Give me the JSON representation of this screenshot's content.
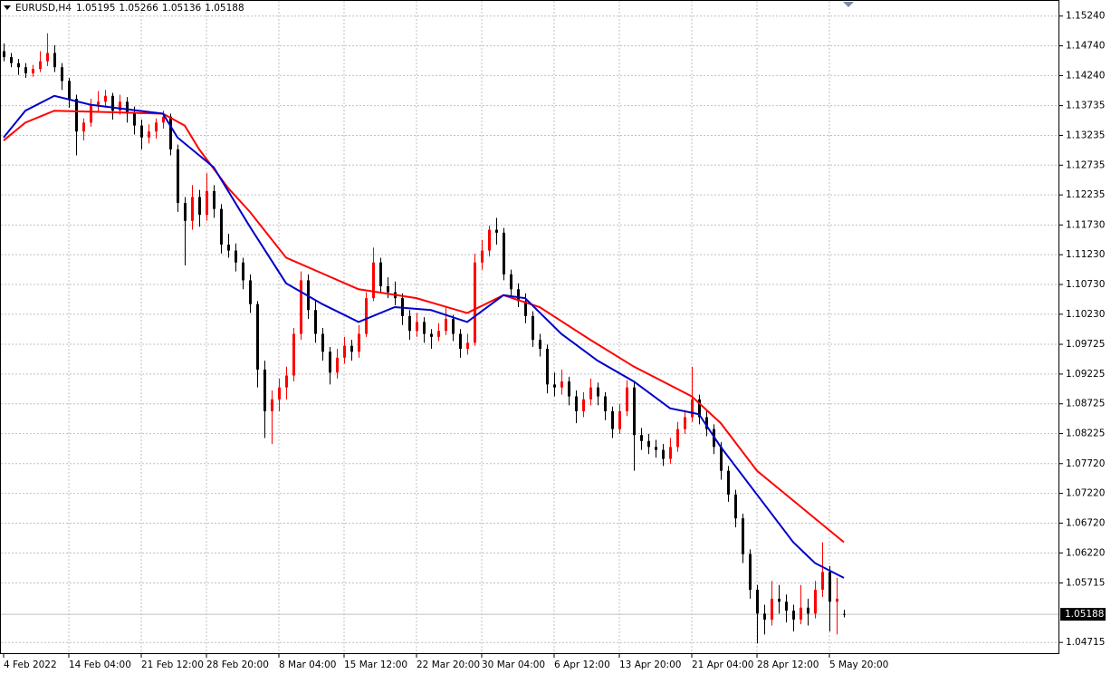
{
  "chart_data": {
    "type": "candlestick",
    "title": "EURUSD,H4",
    "up_color": "#ff0000",
    "down_color": "#000000",
    "grid": true,
    "ylim": [
      1.0452,
      1.1551
    ],
    "yticks": [
      {
        "value": 1.1524,
        "label": "1.15240"
      },
      {
        "value": 1.1474,
        "label": "1.14740"
      },
      {
        "value": 1.1424,
        "label": "1.14240"
      },
      1.13735,
      1.13235,
      1.12735,
      1.12235,
      {
        "value": 1.1173,
        "label": "1.11730"
      },
      {
        "value": 1.1123,
        "label": "1.11230"
      },
      {
        "value": 1.1073,
        "label": "1.10730"
      },
      {
        "value": 1.1023,
        "label": "1.10230"
      },
      1.09725,
      1.09225,
      1.08725,
      1.08225,
      {
        "value": 1.0772,
        "label": "1.07720"
      },
      {
        "value": 1.0722,
        "label": "1.07220"
      },
      {
        "value": 1.0672,
        "label": "1.06720"
      },
      {
        "value": 1.0622,
        "label": "1.06220"
      },
      1.05715,
      1.04715
    ],
    "categories": [
      "4 Feb 2022",
      null,
      null,
      null,
      null,
      null,
      null,
      null,
      null,
      "14 Feb 04:00",
      null,
      null,
      null,
      null,
      null,
      null,
      null,
      null,
      null,
      "21 Feb 12:00",
      null,
      null,
      null,
      null,
      null,
      null,
      null,
      null,
      "28 Feb 20:00",
      null,
      null,
      null,
      null,
      null,
      null,
      null,
      null,
      null,
      "8 Mar 04:00",
      null,
      null,
      null,
      null,
      null,
      null,
      null,
      null,
      "15 Mar 12:00",
      null,
      null,
      null,
      null,
      null,
      null,
      null,
      null,
      null,
      "22 Mar 20:00",
      null,
      null,
      null,
      null,
      null,
      null,
      null,
      null,
      "30 Mar 04:00",
      null,
      null,
      null,
      null,
      null,
      null,
      null,
      null,
      null,
      "6 Apr 12:00",
      null,
      null,
      null,
      null,
      null,
      null,
      null,
      null,
      "13 Apr 20:00",
      null,
      null,
      null,
      null,
      null,
      null,
      null,
      null,
      null,
      "21 Apr 04:00",
      null,
      null,
      null,
      null,
      null,
      null,
      null,
      null,
      "28 Apr 12:00",
      null,
      null,
      null,
      null,
      null,
      null,
      null,
      null,
      null,
      "5 May 20:00",
      null,
      null
    ],
    "ohlc": [
      [
        1.1465,
        1.1478,
        1.1448,
        1.1455
      ],
      [
        1.1455,
        1.1462,
        1.1438,
        1.1445
      ],
      [
        1.1445,
        1.1452,
        1.1425,
        1.1438
      ],
      [
        1.1438,
        1.1445,
        1.142,
        1.1428
      ],
      [
        1.1428,
        1.1442,
        1.1422,
        1.1435
      ],
      [
        1.1435,
        1.1465,
        1.143,
        1.1448
      ],
      [
        1.1448,
        1.1495,
        1.144,
        1.1462
      ],
      [
        1.1462,
        1.1475,
        1.143,
        1.1438
      ],
      [
        1.1438,
        1.1445,
        1.14,
        1.1415
      ],
      [
        1.1415,
        1.142,
        1.137,
        1.1385
      ],
      [
        1.1385,
        1.1392,
        1.129,
        1.133
      ],
      [
        1.133,
        1.1352,
        1.1315,
        1.1345
      ],
      [
        1.1345,
        1.1385,
        1.1338,
        1.1375
      ],
      [
        1.1375,
        1.1398,
        1.1362,
        1.138
      ],
      [
        1.138,
        1.14,
        1.137,
        1.139
      ],
      [
        1.139,
        1.1395,
        1.135,
        1.1365
      ],
      [
        1.1365,
        1.1392,
        1.1358,
        1.138
      ],
      [
        1.138,
        1.1388,
        1.1345,
        1.136
      ],
      [
        1.136,
        1.1372,
        1.1325,
        1.134
      ],
      [
        1.134,
        1.135,
        1.13,
        1.132
      ],
      [
        1.132,
        1.1342,
        1.131,
        1.133
      ],
      [
        1.133,
        1.1352,
        1.1318,
        1.1345
      ],
      [
        1.1345,
        1.1365,
        1.1335,
        1.1355
      ],
      [
        1.1355,
        1.136,
        1.129,
        1.13
      ],
      [
        1.13,
        1.1308,
        1.1195,
        1.121
      ],
      [
        1.121,
        1.122,
        1.1105,
        1.118
      ],
      [
        1.118,
        1.124,
        1.1165,
        1.122
      ],
      [
        1.122,
        1.1232,
        1.117,
        1.119
      ],
      [
        1.119,
        1.126,
        1.118,
        1.123
      ],
      [
        1.123,
        1.124,
        1.1185,
        1.12
      ],
      [
        1.12,
        1.1208,
        1.1125,
        1.114
      ],
      [
        1.114,
        1.1158,
        1.1118,
        1.113
      ],
      [
        1.113,
        1.1142,
        1.1095,
        1.111
      ],
      [
        1.111,
        1.1118,
        1.1065,
        1.108
      ],
      [
        1.108,
        1.109,
        1.1025,
        1.104
      ],
      [
        1.104,
        1.1045,
        1.09,
        1.093
      ],
      [
        1.093,
        1.0945,
        1.0815,
        1.086
      ],
      [
        1.086,
        1.0895,
        1.0805,
        1.088
      ],
      [
        1.088,
        1.0915,
        1.086,
        1.09
      ],
      [
        1.09,
        1.0935,
        1.088,
        1.092
      ],
      [
        1.092,
        1.1,
        1.091,
        1.099
      ],
      [
        1.099,
        1.1095,
        1.098,
        1.108
      ],
      [
        1.108,
        1.109,
        1.1015,
        1.103
      ],
      [
        1.103,
        1.1045,
        1.0975,
        1.099
      ],
      [
        1.099,
        1.1,
        1.0945,
        1.096
      ],
      [
        1.096,
        1.0968,
        1.0905,
        1.0925
      ],
      [
        1.0925,
        1.0965,
        1.0915,
        1.095
      ],
      [
        1.095,
        1.0985,
        1.094,
        1.097
      ],
      [
        1.097,
        1.098,
        1.0945,
        1.096
      ],
      [
        1.096,
        1.1005,
        1.095,
        1.099
      ],
      [
        1.099,
        1.106,
        1.0985,
        1.105
      ],
      [
        1.105,
        1.1135,
        1.1045,
        1.111
      ],
      [
        1.111,
        1.1118,
        1.106,
        1.107
      ],
      [
        1.107,
        1.1085,
        1.105,
        1.106
      ],
      [
        1.106,
        1.1078,
        1.1038,
        1.105
      ],
      [
        1.105,
        1.1058,
        1.1005,
        1.102
      ],
      [
        1.102,
        1.103,
        1.098,
        1.0995
      ],
      [
        1.0995,
        1.1025,
        1.0985,
        1.101
      ],
      [
        1.101,
        1.1018,
        1.0975,
        1.099
      ],
      [
        1.099,
        1.0998,
        1.0965,
        1.0985
      ],
      [
        1.0985,
        1.1008,
        1.0978,
        1.0995
      ],
      [
        1.0995,
        1.1035,
        1.0988,
        1.1015
      ],
      [
        1.1015,
        1.1022,
        1.0978,
        1.099
      ],
      [
        1.099,
        1.0998,
        1.095,
        1.0965
      ],
      [
        1.0965,
        1.099,
        1.0955,
        1.0975
      ],
      [
        1.0975,
        1.1125,
        1.097,
        1.111
      ],
      [
        1.111,
        1.1148,
        1.1098,
        1.113
      ],
      [
        1.113,
        1.1172,
        1.112,
        1.1165
      ],
      [
        1.1165,
        1.1185,
        1.114,
        1.116
      ],
      [
        1.116,
        1.1168,
        1.108,
        1.109
      ],
      [
        1.109,
        1.1098,
        1.1052,
        1.1065
      ],
      [
        1.1065,
        1.1075,
        1.1035,
        1.1045
      ],
      [
        1.1045,
        1.1058,
        1.1008,
        1.102
      ],
      [
        1.102,
        1.1028,
        1.0968,
        1.098
      ],
      [
        1.098,
        1.099,
        1.0952,
        1.0965
      ],
      [
        1.0965,
        1.0972,
        1.089,
        1.0905
      ],
      [
        1.0905,
        1.0925,
        1.0885,
        1.09
      ],
      [
        1.09,
        1.093,
        1.0888,
        1.091
      ],
      [
        1.091,
        1.0918,
        1.087,
        1.0885
      ],
      [
        1.0885,
        1.0895,
        1.084,
        1.086
      ],
      [
        1.086,
        1.0892,
        1.085,
        1.088
      ],
      [
        1.088,
        1.0915,
        1.087,
        1.09
      ],
      [
        1.09,
        1.0908,
        1.087,
        1.0885
      ],
      [
        1.0885,
        1.0892,
        1.0845,
        1.086
      ],
      [
        1.086,
        1.0868,
        1.0815,
        1.083
      ],
      [
        1.083,
        1.0872,
        1.0822,
        1.086
      ],
      [
        1.086,
        1.0912,
        1.0852,
        1.09
      ],
      [
        1.09,
        1.0908,
        1.076,
        1.082
      ],
      [
        1.082,
        1.0832,
        1.0795,
        1.081
      ],
      [
        1.081,
        1.0822,
        1.0788,
        1.08
      ],
      [
        1.08,
        1.0812,
        1.0782,
        1.0795
      ],
      [
        1.0795,
        1.0805,
        1.0768,
        1.078
      ],
      [
        1.078,
        1.0815,
        1.0772,
        1.08
      ],
      [
        1.08,
        1.0842,
        1.0792,
        1.083
      ],
      [
        1.083,
        1.0862,
        1.0822,
        1.085
      ],
      [
        1.085,
        1.0935,
        1.0842,
        1.088
      ],
      [
        1.088,
        1.0888,
        1.0838,
        1.085
      ],
      [
        1.085,
        1.086,
        1.0818,
        1.083
      ],
      [
        1.083,
        1.0838,
        1.0788,
        1.08
      ],
      [
        1.08,
        1.0808,
        1.0745,
        1.076
      ],
      [
        1.076,
        1.0768,
        1.0708,
        1.072
      ],
      [
        1.072,
        1.0728,
        1.0665,
        1.068
      ],
      [
        1.068,
        1.0688,
        1.0605,
        1.062
      ],
      [
        1.062,
        1.0628,
        1.0545,
        1.056
      ],
      [
        1.056,
        1.0568,
        1.047,
        1.052
      ],
      [
        1.052,
        1.0535,
        1.0485,
        1.051
      ],
      [
        1.051,
        1.0575,
        1.05,
        1.0545
      ],
      [
        1.0545,
        1.0568,
        1.052,
        1.054
      ],
      [
        1.054,
        1.0552,
        1.0505,
        1.0525
      ],
      [
        1.0525,
        1.0535,
        1.049,
        1.051
      ],
      [
        1.051,
        1.0568,
        1.0502,
        1.053
      ],
      [
        1.053,
        1.0545,
        1.05,
        1.052
      ],
      [
        1.052,
        1.0575,
        1.0512,
        1.056
      ],
      [
        1.056,
        1.064,
        1.0548,
        1.059
      ],
      [
        1.059,
        1.06,
        1.049,
        1.054
      ],
      [
        1.054,
        1.058,
        1.0485,
        1.0545
      ],
      [
        1.05195,
        1.05266,
        1.05136,
        1.05188
      ]
    ],
    "ma": [
      {
        "color": "#ff0000",
        "x": [
          0,
          3,
          7,
          22,
          25,
          27,
          31,
          34,
          39,
          49,
          57,
          64,
          69,
          74,
          81,
          87,
          95,
          99,
          104,
          112,
          116
        ],
        "values": [
          1.1315,
          1.1345,
          1.1365,
          1.136,
          1.134,
          1.13,
          1.1235,
          1.1195,
          1.1118,
          1.1065,
          1.105,
          1.1025,
          1.1055,
          1.1035,
          1.098,
          1.0935,
          1.0885,
          1.084,
          1.076,
          1.068,
          1.064
        ]
      },
      {
        "color": "#0000c8",
        "x": [
          0,
          3,
          7,
          12,
          22,
          24,
          29,
          34,
          39,
          44,
          49,
          54,
          59,
          64,
          69,
          72,
          77,
          82,
          87,
          92,
          96,
          99,
          104,
          109,
          112,
          116
        ],
        "values": [
          1.132,
          1.1365,
          1.139,
          1.1375,
          1.136,
          1.132,
          1.127,
          1.117,
          1.1075,
          1.104,
          1.101,
          1.1035,
          1.103,
          1.101,
          1.1055,
          1.105,
          1.099,
          1.0945,
          1.091,
          1.0865,
          1.0855,
          1.08,
          1.072,
          1.064,
          1.0605,
          1.058
        ]
      }
    ]
  }
}
